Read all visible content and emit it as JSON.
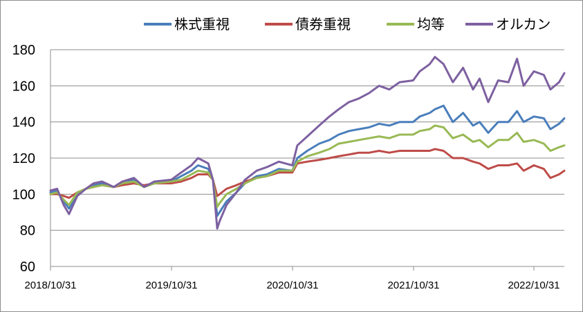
{
  "chart_data": {
    "type": "line",
    "title": "",
    "xlabel": "",
    "ylabel": "",
    "ylim": [
      60,
      180
    ],
    "yticks": [
      60,
      80,
      100,
      120,
      140,
      160,
      180
    ],
    "x_tick_labels": [
      "2018/10/31",
      "2019/10/31",
      "2020/10/31",
      "2021/10/31",
      "2022/10/31"
    ],
    "grid": "horizontal",
    "legend_position": "top-right",
    "x": [
      "2018/10/31",
      "2018/11/20",
      "2018/12/10",
      "2018/12/26",
      "2019/01/20",
      "2019/02/15",
      "2019/03/10",
      "2019/04/05",
      "2019/05/10",
      "2019/06/05",
      "2019/07/10",
      "2019/08/10",
      "2019/09/10",
      "2019/10/31",
      "2019/11/30",
      "2019/12/31",
      "2020/01/20",
      "2020/02/20",
      "2020/03/05",
      "2020/03/18",
      "2020/03/25",
      "2020/04/15",
      "2020/05/15",
      "2020/06/10",
      "2020/07/15",
      "2020/08/15",
      "2020/09/20",
      "2020/10/31",
      "2020/11/15",
      "2020/12/15",
      "2021/01/20",
      "2021/02/20",
      "2021/03/20",
      "2021/04/20",
      "2021/05/20",
      "2021/06/20",
      "2021/07/20",
      "2021/08/20",
      "2021/09/20",
      "2021/10/31",
      "2021/11/20",
      "2021/12/20",
      "2022/01/05",
      "2022/01/31",
      "2022/02/28",
      "2022/03/31",
      "2022/04/30",
      "2022/05/20",
      "2022/06/15",
      "2022/07/15",
      "2022/08/15",
      "2022/09/10",
      "2022/09/30",
      "2022/10/31",
      "2022/11/30",
      "2022/12/20",
      "2023/01/15",
      "2023/01/31"
    ],
    "series": [
      {
        "name": "株式重視",
        "color": "#4a7ebb",
        "values": [
          101,
          102,
          96,
          92,
          100,
          103,
          105,
          106,
          104,
          106,
          108,
          104,
          106,
          107,
          110,
          113,
          116,
          114,
          108,
          88,
          90,
          96,
          101,
          106,
          110,
          111,
          114,
          113,
          120,
          124,
          128,
          130,
          133,
          135,
          136,
          137,
          139,
          138,
          140,
          140,
          143,
          145,
          147,
          149,
          140,
          145,
          138,
          140,
          134,
          140,
          140,
          146,
          140,
          143,
          142,
          136,
          139,
          142
        ]
      },
      {
        "name": "債券重視",
        "color": "#be4b48",
        "values": [
          100,
          100,
          99,
          98,
          101,
          103,
          104,
          105,
          104,
          105,
          106,
          105,
          106,
          106,
          107,
          109,
          111,
          111,
          108,
          99,
          100,
          103,
          105,
          107,
          109,
          110,
          112,
          112,
          117,
          118,
          119,
          120,
          121,
          122,
          123,
          123,
          124,
          123,
          124,
          124,
          124,
          124,
          125,
          124,
          120,
          120,
          118,
          117,
          114,
          116,
          116,
          117,
          113,
          116,
          114,
          109,
          111,
          113
        ]
      },
      {
        "name": "均等",
        "color": "#98b954",
        "values": [
          100,
          101,
          97,
          94,
          101,
          103,
          104,
          105,
          104,
          106,
          107,
          104,
          106,
          107,
          108,
          111,
          113,
          112,
          108,
          93,
          95,
          100,
          103,
          106,
          109,
          110,
          113,
          113,
          118,
          121,
          123,
          125,
          128,
          129,
          130,
          131,
          132,
          131,
          133,
          133,
          135,
          136,
          138,
          137,
          131,
          133,
          129,
          130,
          126,
          130,
          130,
          134,
          129,
          130,
          128,
          124,
          126,
          127
        ]
      },
      {
        "name": "オルカン",
        "color": "#7d60a0",
        "values": [
          102,
          103,
          94,
          89,
          99,
          103,
          106,
          107,
          104,
          107,
          109,
          104,
          107,
          108,
          112,
          116,
          120,
          117,
          108,
          81,
          85,
          94,
          101,
          108,
          113,
          115,
          118,
          116,
          127,
          132,
          138,
          143,
          147,
          151,
          153,
          156,
          160,
          158,
          162,
          163,
          168,
          172,
          176,
          172,
          162,
          170,
          158,
          164,
          151,
          163,
          162,
          175,
          160,
          168,
          166,
          158,
          162,
          167
        ]
      }
    ]
  }
}
